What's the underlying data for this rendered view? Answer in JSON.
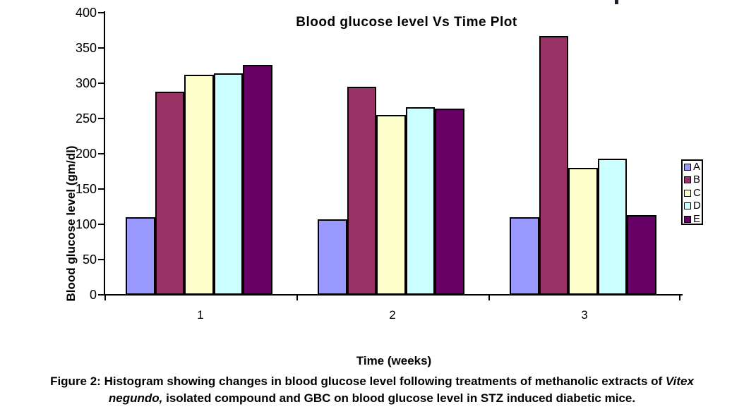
{
  "figure": {
    "caption": {
      "line1_text": "Figure 2: Histogram showing changes in blood glucose level following treatments of methanolic extracts of ",
      "line1_italic": "Vitex",
      "line2_italic": "negundo,",
      "line2_text": " isolated compound and GBC on blood glucose level in STZ induced diabetic mice."
    }
  },
  "chart_data": {
    "type": "bar",
    "title": "Blood glucose level Vs Time Plot",
    "xlabel": "Time (weeks)",
    "ylabel": "Blood glucose level (gm/dl)",
    "categories": [
      "1",
      "2",
      "3"
    ],
    "series": [
      {
        "name": "A",
        "color": "#9999FF",
        "values": [
          110,
          107,
          110
        ]
      },
      {
        "name": "B",
        "color": "#993366",
        "values": [
          288,
          295,
          367
        ]
      },
      {
        "name": "C",
        "color": "#FFFFCC",
        "values": [
          312,
          255,
          180
        ]
      },
      {
        "name": "D",
        "color": "#CCFFFF",
        "values": [
          314,
          266,
          193
        ]
      },
      {
        "name": "E",
        "color": "#660066",
        "values": [
          326,
          264,
          113
        ]
      }
    ],
    "ylim": [
      0,
      400
    ],
    "ytick_step": 50,
    "grid": false,
    "legend_position": "right",
    "bar_border_color": "#000000"
  }
}
